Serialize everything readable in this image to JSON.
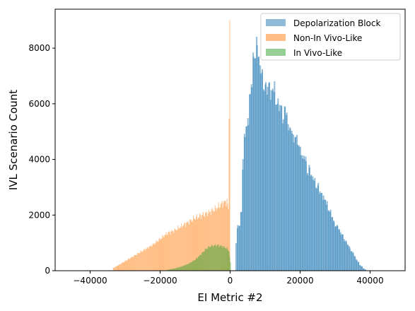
{
  "chart_data": {
    "type": "bar",
    "subtype": "overlapping-histogram",
    "title": "",
    "xlabel": "EI Metric #2",
    "ylabel": "IVL Scenario Count",
    "xlim": [
      -50000,
      50000
    ],
    "ylim": [
      0,
      9400
    ],
    "x_ticks": [
      -40000,
      -20000,
      0,
      20000,
      40000
    ],
    "y_ticks": [
      0,
      2000,
      4000,
      6000,
      8000
    ],
    "grid": false,
    "legend_position": "top-right",
    "series": [
      {
        "name": "Depolarization Block",
        "color": "#1f77b4",
        "opacity": 0.5,
        "bin_width": 400,
        "points": [
          [
            1500,
            1000
          ],
          [
            2000,
            1550
          ],
          [
            2500,
            1650
          ],
          [
            3000,
            2050
          ],
          [
            3500,
            4050
          ],
          [
            4000,
            4850
          ],
          [
            4500,
            5150
          ],
          [
            5000,
            5500
          ],
          [
            5500,
            6250
          ],
          [
            6000,
            7050
          ],
          [
            6500,
            7650
          ],
          [
            7000,
            8050
          ],
          [
            7500,
            8300
          ],
          [
            8000,
            7850
          ],
          [
            8500,
            7450
          ],
          [
            9000,
            7150
          ],
          [
            9500,
            6850
          ],
          [
            10000,
            6600
          ],
          [
            10500,
            6850
          ],
          [
            11000,
            6650
          ],
          [
            11500,
            6450
          ],
          [
            12000,
            6550
          ],
          [
            12500,
            6500
          ],
          [
            13000,
            6050
          ],
          [
            13500,
            5800
          ],
          [
            14000,
            6000
          ],
          [
            14500,
            5600
          ],
          [
            15000,
            5350
          ],
          [
            15500,
            5750
          ],
          [
            16000,
            5450
          ],
          [
            16500,
            5100
          ],
          [
            17000,
            4850
          ],
          [
            17500,
            5100
          ],
          [
            18000,
            4450
          ],
          [
            18500,
            4950
          ],
          [
            19000,
            4550
          ],
          [
            19500,
            4500
          ],
          [
            20000,
            4350
          ],
          [
            20500,
            4000
          ],
          [
            21000,
            4300
          ],
          [
            21500,
            3900
          ],
          [
            22000,
            3650
          ],
          [
            22500,
            3750
          ],
          [
            23000,
            3550
          ],
          [
            23500,
            3400
          ],
          [
            24000,
            3300
          ],
          [
            24500,
            3100
          ],
          [
            25000,
            3050
          ],
          [
            25500,
            2950
          ],
          [
            26000,
            2700
          ],
          [
            26500,
            2700
          ],
          [
            27000,
            2500
          ],
          [
            27500,
            2400
          ],
          [
            28000,
            2150
          ],
          [
            28500,
            2050
          ],
          [
            29000,
            1950
          ],
          [
            29500,
            1650
          ],
          [
            30000,
            1600
          ],
          [
            30500,
            1550
          ],
          [
            31000,
            1450
          ],
          [
            31500,
            1300
          ],
          [
            32000,
            1250
          ],
          [
            32500,
            1100
          ],
          [
            33000,
            1000
          ],
          [
            33500,
            950
          ],
          [
            34000,
            800
          ],
          [
            34500,
            700
          ],
          [
            35000,
            650
          ],
          [
            35500,
            500
          ],
          [
            36000,
            400
          ],
          [
            36500,
            300
          ],
          [
            37000,
            200
          ],
          [
            37500,
            150
          ],
          [
            38000,
            80
          ],
          [
            38500,
            40
          ]
        ]
      },
      {
        "name": "Non-In Vivo-Like",
        "color": "#ff7f0e",
        "opacity": 0.5,
        "bin_width": 200,
        "points": [
          [
            -33500,
            100
          ],
          [
            -32000,
            200
          ],
          [
            -30000,
            350
          ],
          [
            -28000,
            500
          ],
          [
            -26000,
            650
          ],
          [
            -24000,
            800
          ],
          [
            -22000,
            950
          ],
          [
            -20000,
            1150
          ],
          [
            -18000,
            1350
          ],
          [
            -16000,
            1450
          ],
          [
            -14000,
            1600
          ],
          [
            -12000,
            1750
          ],
          [
            -10000,
            1900
          ],
          [
            -8000,
            2000
          ],
          [
            -6000,
            2100
          ],
          [
            -4000,
            2250
          ],
          [
            -3000,
            2350
          ],
          [
            -2000,
            2450
          ],
          [
            -1000,
            2500
          ],
          [
            -600,
            2200
          ],
          [
            -200,
            9000
          ]
        ]
      },
      {
        "name": "In Vivo-Like",
        "color": "#2ca02c",
        "opacity": 0.5,
        "bin_width": 200,
        "points": [
          [
            -18000,
            30
          ],
          [
            -16000,
            80
          ],
          [
            -14000,
            150
          ],
          [
            -12000,
            250
          ],
          [
            -10000,
            400
          ],
          [
            -9000,
            520
          ],
          [
            -8000,
            650
          ],
          [
            -7000,
            780
          ],
          [
            -6000,
            870
          ],
          [
            -5000,
            900
          ],
          [
            -4000,
            920
          ],
          [
            -3000,
            900
          ],
          [
            -2000,
            860
          ],
          [
            -1000,
            800
          ],
          [
            -400,
            700
          ],
          [
            0,
            300
          ]
        ]
      }
    ]
  }
}
